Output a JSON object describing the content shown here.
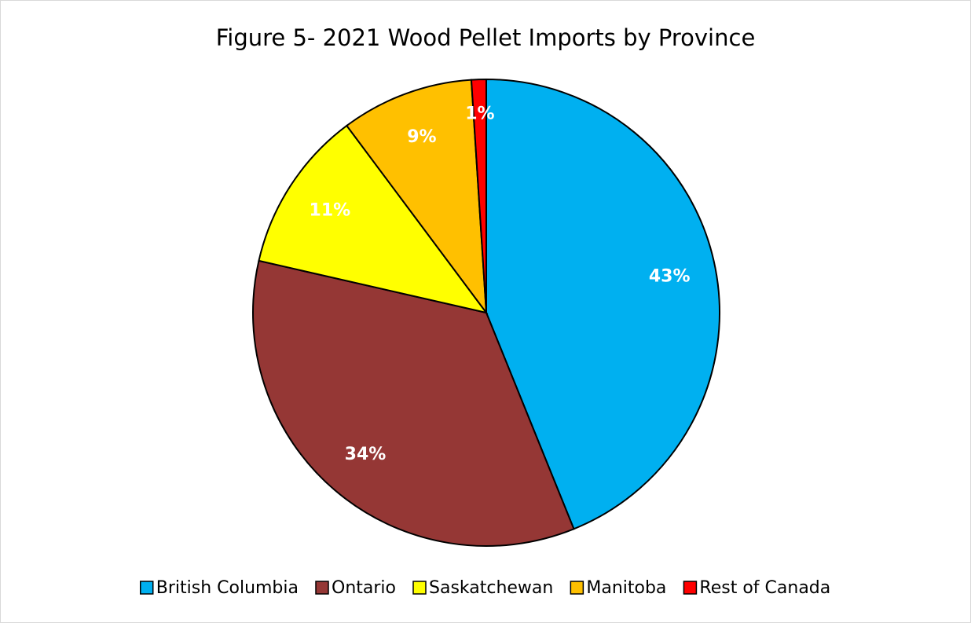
{
  "chart_data": {
    "type": "pie",
    "title": "Figure 5- 2021 Wood Pellet Imports by Province",
    "categories": [
      "British Columbia",
      "Ontario",
      "Saskatchewan",
      "Manitoba",
      "Rest of Canada"
    ],
    "values": [
      43,
      34,
      11,
      9,
      1
    ],
    "value_labels": [
      "43%",
      "34%",
      "11%",
      "9%",
      "1%"
    ],
    "colors": [
      "#00b0f0",
      "#953735",
      "#ffff00",
      "#ffc000",
      "#ff0000"
    ],
    "legend": "bottom"
  }
}
